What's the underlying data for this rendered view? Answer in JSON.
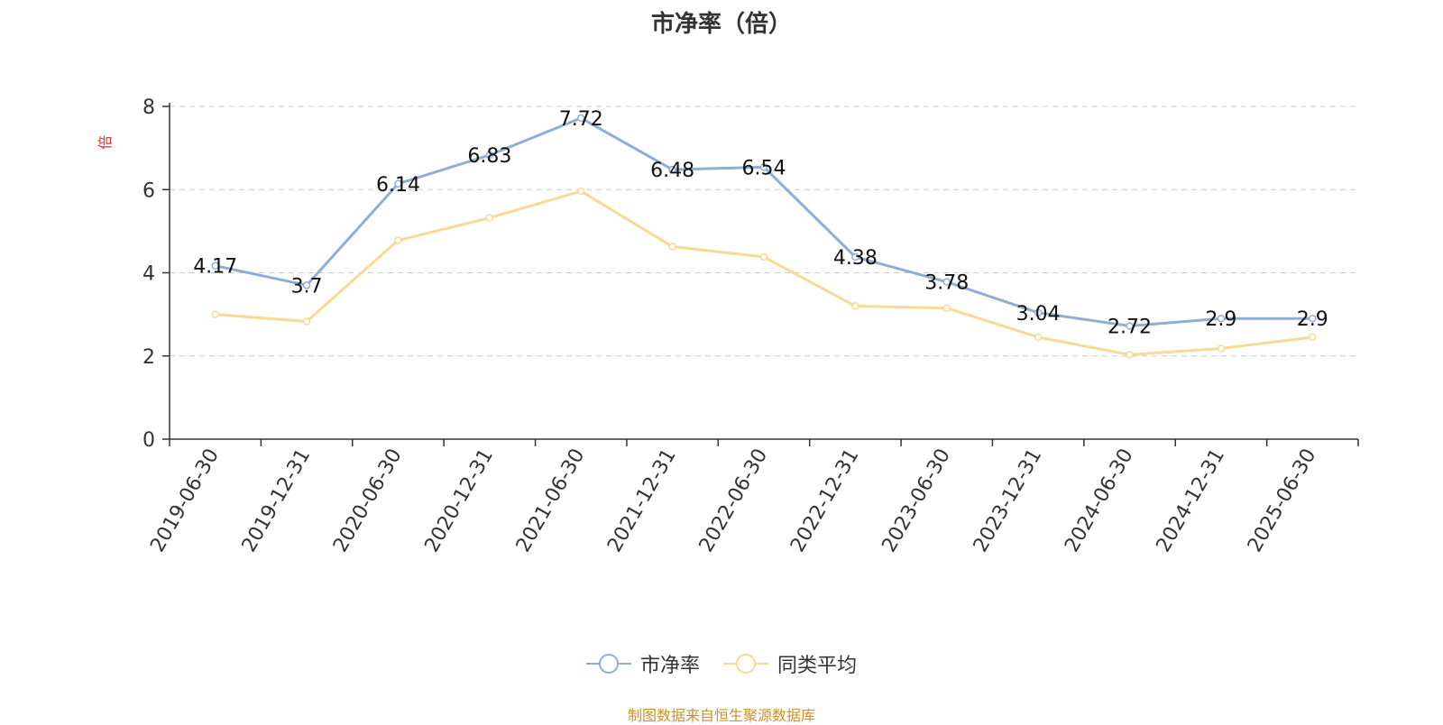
{
  "chart_data": {
    "type": "line",
    "title": "市净率（倍）",
    "ylabel": "倍",
    "xlabel": "",
    "x": [
      "2019-06-30",
      "2019-12-31",
      "2020-06-30",
      "2020-12-31",
      "2021-06-30",
      "2021-12-31",
      "2022-06-30",
      "2022-12-31",
      "2023-06-30",
      "2023-12-31",
      "2024-06-30",
      "2024-12-31",
      "2025-06-30"
    ],
    "ylim": [
      0,
      8
    ],
    "yticks": [
      0,
      2,
      4,
      6,
      8
    ],
    "grid": "horizontal dashed",
    "legend_position": "bottom-center",
    "series": [
      {
        "name": "市净率",
        "color": "#8eaed8",
        "data_labels": true,
        "values": [
          4.17,
          3.7,
          6.14,
          6.83,
          7.72,
          6.48,
          6.54,
          4.38,
          3.78,
          3.04,
          2.72,
          2.9,
          2.9
        ]
      },
      {
        "name": "同类平均",
        "color": "#fbd994",
        "data_labels": false,
        "values": [
          3.0,
          2.83,
          4.78,
          5.32,
          5.96,
          4.63,
          4.38,
          3.2,
          3.15,
          2.45,
          2.03,
          2.18,
          2.45
        ]
      }
    ],
    "source_note": "制图数据来自恒生聚源数据库"
  },
  "colors": {
    "axis": "#333333",
    "grid": "#cccccc",
    "ylabel": "#e03030",
    "source_note": "#c8932a"
  }
}
